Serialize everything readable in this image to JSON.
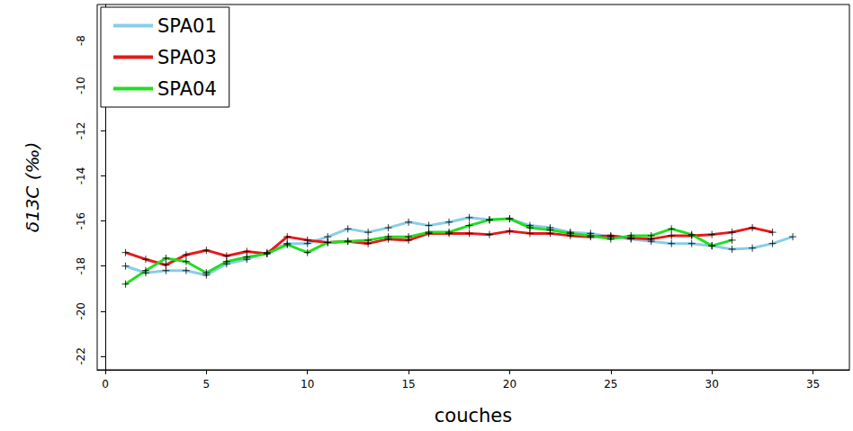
{
  "chart_data": {
    "type": "line",
    "x_label": "couches",
    "y_label": "δ13C (‰)",
    "xlim": [
      -0.4,
      36.8
    ],
    "xticks": [
      0,
      5,
      10,
      15,
      20,
      25,
      30,
      35
    ],
    "ylim": [
      -22.6,
      -6.4
    ],
    "yticks": [
      -22,
      -20,
      -18,
      -16,
      -14,
      -12,
      -10,
      -8
    ],
    "grid": false,
    "legend": "upper left",
    "marker": "plus",
    "series": [
      {
        "name": "SPA01",
        "color": "#87cee8",
        "x": [
          1,
          2,
          3,
          4,
          5,
          6,
          7,
          8,
          9,
          10,
          11,
          12,
          13,
          14,
          15,
          16,
          17,
          18,
          19,
          20,
          21,
          22,
          23,
          24,
          25,
          26,
          27,
          28,
          29,
          30,
          31,
          32,
          33,
          34
        ],
        "values": [
          -18.0,
          -18.3,
          -18.2,
          -18.2,
          -18.4,
          -17.9,
          -17.7,
          -17.4,
          -17.0,
          -17.0,
          -16.7,
          -16.35,
          -16.5,
          -16.3,
          -16.05,
          -16.2,
          -16.05,
          -15.85,
          -15.95,
          -15.9,
          -16.2,
          -16.3,
          -16.5,
          -16.55,
          -16.7,
          -16.8,
          -16.9,
          -17.0,
          -17.0,
          -17.1,
          -17.25,
          -17.2,
          -17.0,
          -16.7
        ]
      },
      {
        "name": "SPA03",
        "color": "#e41a1c",
        "x": [
          1,
          2,
          3,
          4,
          5,
          6,
          7,
          8,
          9,
          10,
          11,
          12,
          13,
          14,
          15,
          16,
          17,
          18,
          19,
          20,
          21,
          22,
          23,
          24,
          25,
          26,
          27,
          28,
          29,
          30,
          31,
          32,
          33
        ],
        "values": [
          -17.4,
          -17.7,
          -17.95,
          -17.5,
          -17.3,
          -17.55,
          -17.35,
          -17.45,
          -16.7,
          -16.85,
          -16.95,
          -16.9,
          -17.0,
          -16.8,
          -16.85,
          -16.55,
          -16.55,
          -16.55,
          -16.6,
          -16.45,
          -16.55,
          -16.55,
          -16.65,
          -16.7,
          -16.65,
          -16.75,
          -16.8,
          -16.65,
          -16.65,
          -16.6,
          -16.5,
          -16.3,
          -16.5
        ]
      },
      {
        "name": "SPA04",
        "color": "#22dd22",
        "x": [
          1,
          2,
          3,
          4,
          5,
          6,
          7,
          8,
          9,
          10,
          11,
          12,
          13,
          14,
          15,
          16,
          17,
          18,
          19,
          20,
          21,
          22,
          23,
          24,
          25,
          26,
          27,
          28,
          29,
          30,
          31
        ],
        "values": [
          -18.8,
          -18.2,
          -17.65,
          -17.8,
          -18.3,
          -17.8,
          -17.6,
          -17.45,
          -17.05,
          -17.4,
          -16.95,
          -16.9,
          -16.85,
          -16.7,
          -16.7,
          -16.5,
          -16.5,
          -16.2,
          -15.95,
          -15.9,
          -16.3,
          -16.4,
          -16.55,
          -16.65,
          -16.8,
          -16.65,
          -16.65,
          -16.35,
          -16.6,
          -17.1,
          -16.85
        ]
      }
    ]
  }
}
